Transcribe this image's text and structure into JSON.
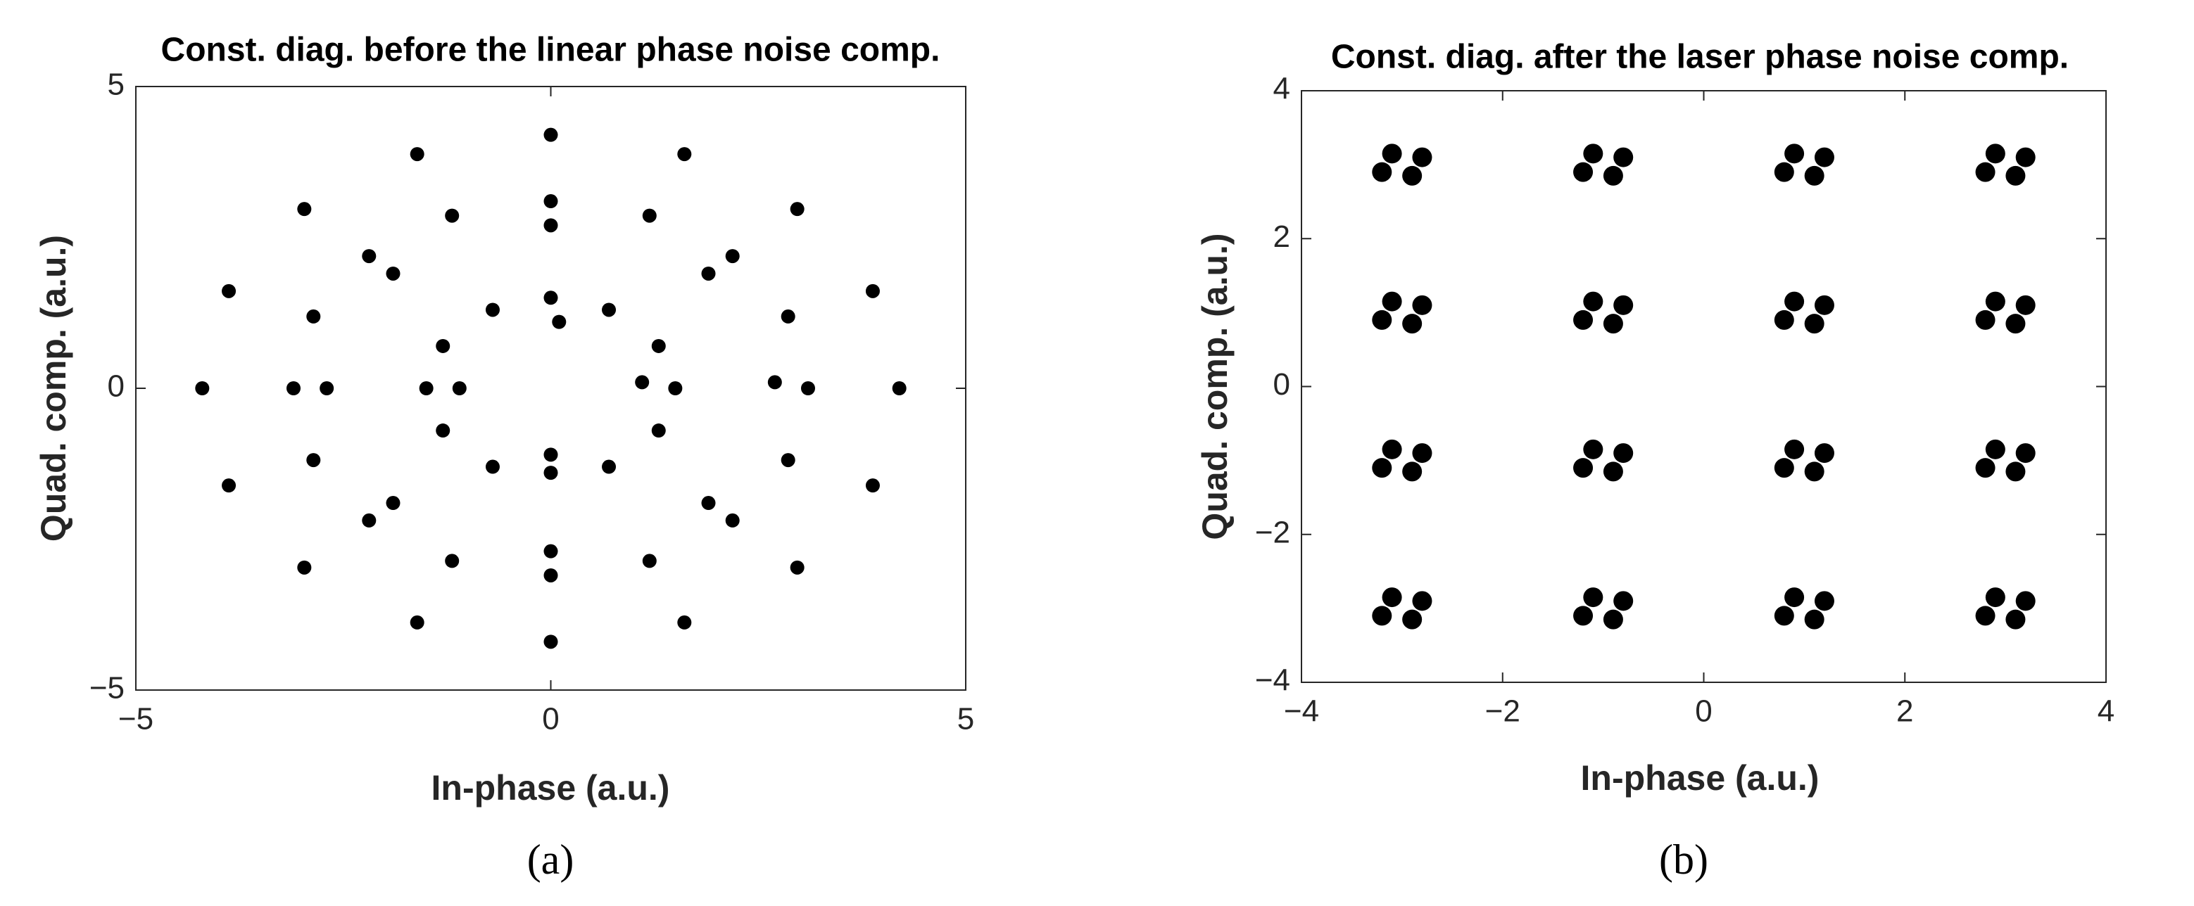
{
  "chart_data": [
    {
      "type": "scatter",
      "title": "Const. diag. before the linear phase noise comp.",
      "x_label": "In-phase (a.u.)",
      "y_label": "Quad. comp. (a.u.)",
      "panel_label": "(a)",
      "xlim": [
        -5,
        5
      ],
      "ylim": [
        -5,
        5
      ],
      "xticks": [
        {
          "value": -5,
          "label": "−5"
        },
        0,
        5
      ],
      "yticks": [
        {
          "value": -5,
          "label": "−5"
        },
        0,
        5
      ],
      "series": [
        {
          "color": "#000000",
          "x": [
            1.5,
            1.3,
            0.7,
            0,
            -0.7,
            -1.3,
            -1.5,
            -1.3,
            -0.7,
            0,
            0.7,
            1.3,
            1.1,
            0.1,
            -1.1,
            0,
            3.1,
            2.86,
            2.19,
            1.19,
            0,
            -1.19,
            -2.19,
            -2.86,
            -3.1,
            -2.86,
            -2.19,
            -1.19,
            0,
            1.19,
            2.19,
            2.86,
            2.7,
            1.9,
            0,
            -1.9,
            -2.7,
            -1.9,
            0,
            1.9,
            4.2,
            3.88,
            2.97,
            1.61,
            0,
            -1.61,
            -2.97,
            -3.88,
            -4.2,
            -3.88,
            -2.97,
            -1.61,
            0,
            1.61,
            2.97,
            3.88
          ],
          "values": [
            0,
            0.7,
            1.3,
            1.5,
            1.3,
            0.7,
            0,
            -0.7,
            -1.3,
            -1.4,
            -1.3,
            -0.7,
            0.1,
            1.1,
            0,
            -1.1,
            0,
            1.19,
            2.19,
            2.86,
            3.1,
            2.86,
            2.19,
            1.19,
            0,
            -1.19,
            -2.19,
            -2.86,
            -3.1,
            -2.86,
            -2.19,
            -1.19,
            0.1,
            1.9,
            2.7,
            1.9,
            0,
            -1.9,
            -2.7,
            -1.9,
            0,
            1.61,
            2.97,
            3.88,
            4.2,
            3.88,
            2.97,
            1.61,
            0,
            -1.61,
            -2.97,
            -3.88,
            -4.2,
            -3.88,
            -2.97,
            -1.61
          ]
        }
      ]
    },
    {
      "type": "scatter",
      "title": "Const. diag. after the laser phase noise comp.",
      "x_label": "In-phase (a.u.)",
      "y_label": "Quad. comp. (a.u.)",
      "panel_label": "(b)",
      "xlim": [
        -4,
        4
      ],
      "ylim": [
        -4,
        4
      ],
      "xticks": [
        {
          "value": -4,
          "label": "−4"
        },
        {
          "value": -2,
          "label": "−2"
        },
        0,
        2,
        4
      ],
      "yticks": [
        {
          "value": -4,
          "label": "−4"
        },
        {
          "value": -2,
          "label": "−2"
        },
        0,
        2,
        4
      ],
      "series": [
        {
          "color": "#000000",
          "x": [
            -2.8,
            -3.2,
            -3.1,
            -2.9,
            -0.8,
            -1.2,
            -1.1,
            -0.9,
            1.2,
            0.8,
            0.9,
            1.1,
            3.2,
            2.8,
            2.9,
            3.1,
            -2.8,
            -3.2,
            -3.1,
            -2.9,
            -0.8,
            -1.2,
            -1.1,
            -0.9,
            1.2,
            0.8,
            0.9,
            1.1,
            3.2,
            2.8,
            2.9,
            3.1,
            -2.8,
            -3.2,
            -3.1,
            -2.9,
            -0.8,
            -1.2,
            -1.1,
            -0.9,
            1.2,
            0.8,
            0.9,
            1.1,
            3.2,
            2.8,
            2.9,
            3.1,
            -2.8,
            -3.2,
            -3.1,
            -2.9,
            -0.8,
            -1.2,
            -1.1,
            -0.9,
            1.2,
            0.8,
            0.9,
            1.1,
            3.2,
            2.8,
            2.9,
            3.1
          ],
          "values": [
            3.1,
            2.9,
            3.15,
            2.85,
            3.1,
            2.9,
            3.15,
            2.85,
            3.1,
            2.9,
            3.15,
            2.85,
            3.1,
            2.9,
            3.15,
            2.85,
            1.1,
            0.9,
            1.15,
            0.85,
            1.1,
            0.9,
            1.15,
            0.85,
            1.1,
            0.9,
            1.15,
            0.85,
            1.1,
            0.9,
            1.15,
            0.85,
            -0.9,
            -1.1,
            -0.85,
            -1.15,
            -0.9,
            -1.1,
            -0.85,
            -1.15,
            -0.9,
            -1.1,
            -0.85,
            -1.15,
            -0.9,
            -1.1,
            -0.85,
            -1.15,
            -2.9,
            -3.1,
            -2.85,
            -3.15,
            -2.9,
            -3.1,
            -2.85,
            -3.15,
            -2.9,
            -3.1,
            -2.85,
            -3.15,
            -2.9,
            -3.1,
            -2.85,
            -3.15
          ]
        }
      ]
    }
  ]
}
